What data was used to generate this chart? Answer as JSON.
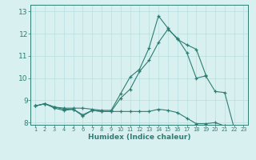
{
  "xlabel": "Humidex (Indice chaleur)",
  "x_values": [
    1,
    2,
    3,
    4,
    5,
    6,
    7,
    8,
    9,
    10,
    11,
    12,
    13,
    14,
    15,
    16,
    17,
    18,
    19,
    20,
    21,
    22,
    23
  ],
  "line1_y": [
    8.75,
    8.85,
    8.7,
    8.65,
    8.65,
    8.65,
    8.6,
    8.55,
    8.55,
    9.3,
    10.05,
    10.4,
    11.35,
    12.8,
    12.25,
    11.75,
    11.5,
    11.3,
    10.15,
    null,
    null,
    null,
    null
  ],
  "line2_y": [
    8.75,
    8.85,
    8.65,
    8.55,
    8.6,
    8.3,
    8.55,
    8.5,
    8.5,
    9.1,
    9.5,
    10.3,
    10.8,
    11.6,
    12.2,
    11.8,
    11.15,
    10.0,
    10.1,
    9.4,
    9.35,
    7.75,
    7.6
  ],
  "line3_y": [
    8.75,
    8.85,
    8.7,
    8.6,
    8.6,
    8.35,
    8.55,
    8.5,
    8.5,
    8.5,
    8.5,
    8.5,
    8.5,
    8.6,
    8.55,
    8.45,
    8.2,
    7.95,
    7.95,
    8.0,
    7.85,
    7.6,
    7.55
  ],
  "color": "#2e7d73",
  "background_color": "#d9f0f0",
  "grid_color": "#b8dede",
  "ylim": [
    7.9,
    13.3
  ],
  "yticks": [
    8,
    9,
    10,
    11,
    12,
    13
  ],
  "xlim": [
    0.5,
    23.5
  ]
}
